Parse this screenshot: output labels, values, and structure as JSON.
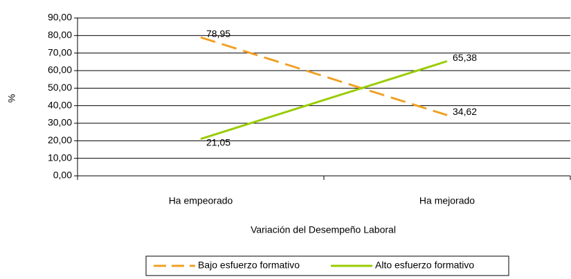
{
  "chart_data": {
    "type": "line",
    "y_label": "%",
    "x_label": "Variación del Desempeño Laboral",
    "categories": [
      "Ha empeorado",
      "Ha mejorado"
    ],
    "series": [
      {
        "name": "Bajo esfuerzo formativo",
        "color": "#f0a022",
        "dashed": true,
        "values": [
          78.95,
          34.62
        ],
        "value_labels": [
          "78,95",
          "34,62"
        ]
      },
      {
        "name": "Alto esfuerzo formativo",
        "color": "#99cc00",
        "dashed": false,
        "values": [
          21.05,
          65.38
        ],
        "value_labels": [
          "21,05",
          "65,38"
        ]
      }
    ],
    "ylim": [
      0,
      90
    ],
    "yticks": [
      {
        "value": 0,
        "label": "0,00"
      },
      {
        "value": 10,
        "label": "10,00"
      },
      {
        "value": 20,
        "label": "20,00"
      },
      {
        "value": 30,
        "label": "30,00"
      },
      {
        "value": 40,
        "label": "40,00"
      },
      {
        "value": 50,
        "label": "50,00"
      },
      {
        "value": 60,
        "label": "60,00"
      },
      {
        "value": 70,
        "label": "70,00"
      },
      {
        "value": 80,
        "label": "80,00"
      },
      {
        "value": 90,
        "label": "90,00"
      }
    ],
    "grid": true
  }
}
